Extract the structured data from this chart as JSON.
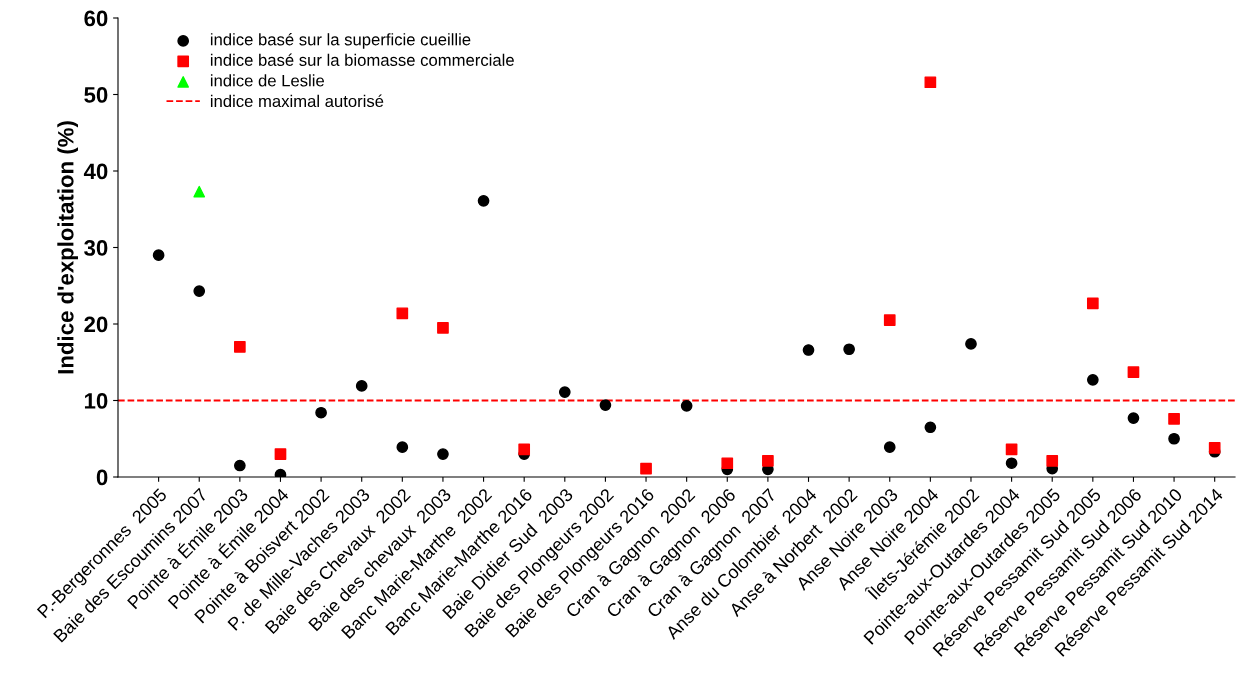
{
  "chart_data": {
    "type": "scatter",
    "ylabel": "Indice d'exploitation (%)",
    "categories": [
      "P.-Bergeronnes  2005",
      "Baie des Escoumins 2007",
      "Pointe à Émile 2003",
      "Pointe à Émile 2004",
      "Pointe à Boisvert 2002",
      "P. de Mille-Vaches 2003",
      "Baie des Chevaux  2002",
      "Baie des chevaux  2003",
      "Banc Marie-Marthe  2002",
      "Banc Marie-Marthe 2016",
      "Baie Didier Sud  2003",
      "Baie des Plongeurs 2002",
      "Baie des Plongeurs 2016",
      "Cran à Gagnon  2002",
      "Cran à Gagnon  2006",
      "Cran à Gagnon  2007",
      "Anse du Colombier  2004",
      "Anse à Norbert  2002",
      "Anse Noire 2003",
      "Anse Noire 2004",
      "Îlets-Jérémie 2002",
      "Pointe-aux-Outardes 2004",
      "Pointe-aux-Outardes 2005",
      "Réserve Pessamit Sud 2005",
      "Réserve Pessamit Sud 2006",
      "Réserve Pessamit Sud 2010",
      "Réserve Pessamit Sud 2014"
    ],
    "series": [
      {
        "name": "indice basé sur la superficie cueillie",
        "color": "#000000",
        "marker": "circle",
        "values": [
          29.0,
          24.3,
          1.5,
          0.3,
          8.4,
          11.9,
          3.9,
          3.0,
          36.1,
          3.0,
          11.1,
          9.4,
          null,
          9.3,
          1.0,
          1.0,
          16.6,
          16.7,
          3.9,
          6.5,
          17.4,
          1.8,
          1.1,
          12.7,
          7.7,
          5.0,
          3.3
        ]
      },
      {
        "name": "indice basé sur la biomasse commerciale",
        "color": "#ff0000",
        "marker": "square",
        "values": [
          null,
          null,
          17.0,
          3.0,
          null,
          null,
          21.4,
          19.5,
          null,
          3.6,
          null,
          null,
          1.1,
          null,
          1.8,
          2.1,
          null,
          null,
          20.5,
          51.6,
          null,
          3.6,
          2.1,
          22.7,
          13.7,
          7.6,
          3.8
        ]
      },
      {
        "name": "indice de Leslie",
        "color": "#00ff00",
        "marker": "triangle",
        "values": [
          null,
          37.3,
          null,
          null,
          null,
          null,
          null,
          null,
          null,
          null,
          null,
          null,
          null,
          null,
          null,
          null,
          null,
          null,
          null,
          null,
          null,
          null,
          null,
          null,
          null,
          null,
          null
        ]
      }
    ],
    "ref_lines": [
      {
        "axis": "y",
        "value": 10,
        "label": "indice maximal autorisé",
        "color": "#ff0000",
        "line_style": "dashed"
      }
    ],
    "ylim": [
      0,
      60
    ],
    "yticks": [
      0,
      10,
      20,
      30,
      40,
      50,
      60
    ],
    "grid": false,
    "legend": "top left"
  }
}
